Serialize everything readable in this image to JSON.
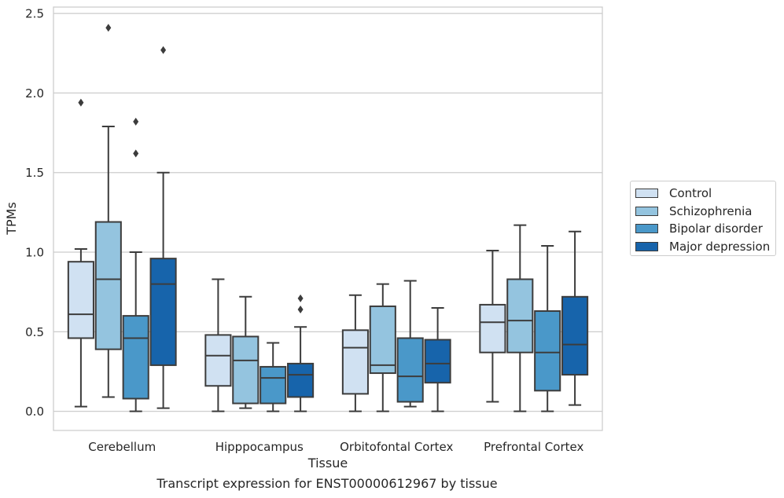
{
  "chart_data": {
    "type": "box",
    "xlabel": "Tissue",
    "ylabel": "TPMs",
    "caption": "Transcript expression for ENST00000612967 by tissue",
    "ylim": [
      -0.12,
      2.54
    ],
    "yticks": [
      "0.0",
      "0.5",
      "1.0",
      "1.5",
      "2.0",
      "2.5"
    ],
    "ytick_values": [
      0,
      0.5,
      1.0,
      1.5,
      2.0,
      2.5
    ],
    "grid": true,
    "legend_position": "right",
    "categories": [
      "Cerebellum",
      "Hipppocampus",
      "Orbitofontal Cortex",
      "Prefrontal Cortex"
    ],
    "series": [
      {
        "name": "Control",
        "color": "#d0e1f2",
        "boxes": [
          {
            "whisker_low": 0.03,
            "q1": 0.46,
            "median": 0.61,
            "q3": 0.94,
            "whisker_high": 1.02,
            "outliers": [
              1.94
            ]
          },
          {
            "whisker_low": 0.0,
            "q1": 0.16,
            "median": 0.35,
            "q3": 0.48,
            "whisker_high": 0.83,
            "outliers": []
          },
          {
            "whisker_low": 0.0,
            "q1": 0.11,
            "median": 0.4,
            "q3": 0.51,
            "whisker_high": 0.73,
            "outliers": []
          },
          {
            "whisker_low": 0.06,
            "q1": 0.37,
            "median": 0.56,
            "q3": 0.67,
            "whisker_high": 1.01,
            "outliers": []
          }
        ]
      },
      {
        "name": "Schizophrenia",
        "color": "#94c4df",
        "boxes": [
          {
            "whisker_low": 0.09,
            "q1": 0.39,
            "median": 0.83,
            "q3": 1.19,
            "whisker_high": 1.79,
            "outliers": [
              2.41
            ]
          },
          {
            "whisker_low": 0.02,
            "q1": 0.05,
            "median": 0.32,
            "q3": 0.47,
            "whisker_high": 0.72,
            "outliers": []
          },
          {
            "whisker_low": 0.0,
            "q1": 0.24,
            "median": 0.29,
            "q3": 0.66,
            "whisker_high": 0.8,
            "outliers": []
          },
          {
            "whisker_low": 0.0,
            "q1": 0.37,
            "median": 0.57,
            "q3": 0.83,
            "whisker_high": 1.17,
            "outliers": []
          }
        ]
      },
      {
        "name": "Bipolar disorder",
        "color": "#4a98c9",
        "boxes": [
          {
            "whisker_low": 0.0,
            "q1": 0.08,
            "median": 0.46,
            "q3": 0.6,
            "whisker_high": 1.0,
            "outliers": [
              1.62,
              1.82
            ]
          },
          {
            "whisker_low": 0.0,
            "q1": 0.05,
            "median": 0.21,
            "q3": 0.28,
            "whisker_high": 0.43,
            "outliers": []
          },
          {
            "whisker_low": 0.03,
            "q1": 0.06,
            "median": 0.22,
            "q3": 0.46,
            "whisker_high": 0.82,
            "outliers": []
          },
          {
            "whisker_low": 0.0,
            "q1": 0.13,
            "median": 0.37,
            "q3": 0.63,
            "whisker_high": 1.04,
            "outliers": []
          }
        ]
      },
      {
        "name": "Major depression",
        "color": "#1764ab",
        "boxes": [
          {
            "whisker_low": 0.02,
            "q1": 0.29,
            "median": 0.8,
            "q3": 0.96,
            "whisker_high": 1.5,
            "outliers": [
              2.27
            ]
          },
          {
            "whisker_low": 0.0,
            "q1": 0.09,
            "median": 0.23,
            "q3": 0.3,
            "whisker_high": 0.53,
            "outliers": [
              0.64,
              0.71
            ]
          },
          {
            "whisker_low": 0.0,
            "q1": 0.18,
            "median": 0.3,
            "q3": 0.45,
            "whisker_high": 0.65,
            "outliers": []
          },
          {
            "whisker_low": 0.04,
            "q1": 0.23,
            "median": 0.42,
            "q3": 0.72,
            "whisker_high": 1.13,
            "outliers": []
          }
        ]
      }
    ]
  },
  "legend": {
    "items": [
      {
        "label": "Control",
        "color": "#d0e1f2"
      },
      {
        "label": "Schizophrenia",
        "color": "#94c4df"
      },
      {
        "label": "Bipolar disorder",
        "color": "#4a98c9"
      },
      {
        "label": "Major depression",
        "color": "#1764ab"
      }
    ]
  }
}
